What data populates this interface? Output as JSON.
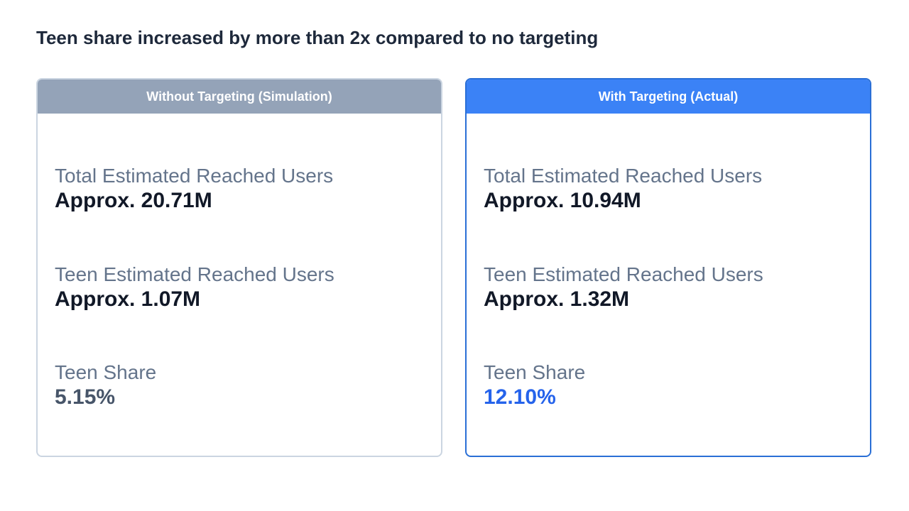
{
  "headline": "Teen share increased by more than 2x compared to no targeting",
  "without": {
    "header": "Without Targeting (Simulation)",
    "total_label": "Total Estimated Reached Users",
    "total_value": "Approx. 20.71M",
    "teen_label": "Teen Estimated Reached Users",
    "teen_value": "Approx. 1.07M",
    "share_label": "Teen Share",
    "share_value": "5.15%"
  },
  "with": {
    "header": "With Targeting (Actual)",
    "total_label": "Total Estimated Reached Users",
    "total_value": "Approx. 10.94M",
    "teen_label": "Teen Estimated Reached Users",
    "teen_value": "Approx. 1.32M",
    "share_label": "Teen Share",
    "share_value": "12.10%"
  },
  "colors": {
    "without_header": "#94a3b8",
    "with_header": "#3b82f6",
    "accent": "#2563eb",
    "with_border": "#2a6fd6",
    "without_border": "#cbd5e1"
  }
}
